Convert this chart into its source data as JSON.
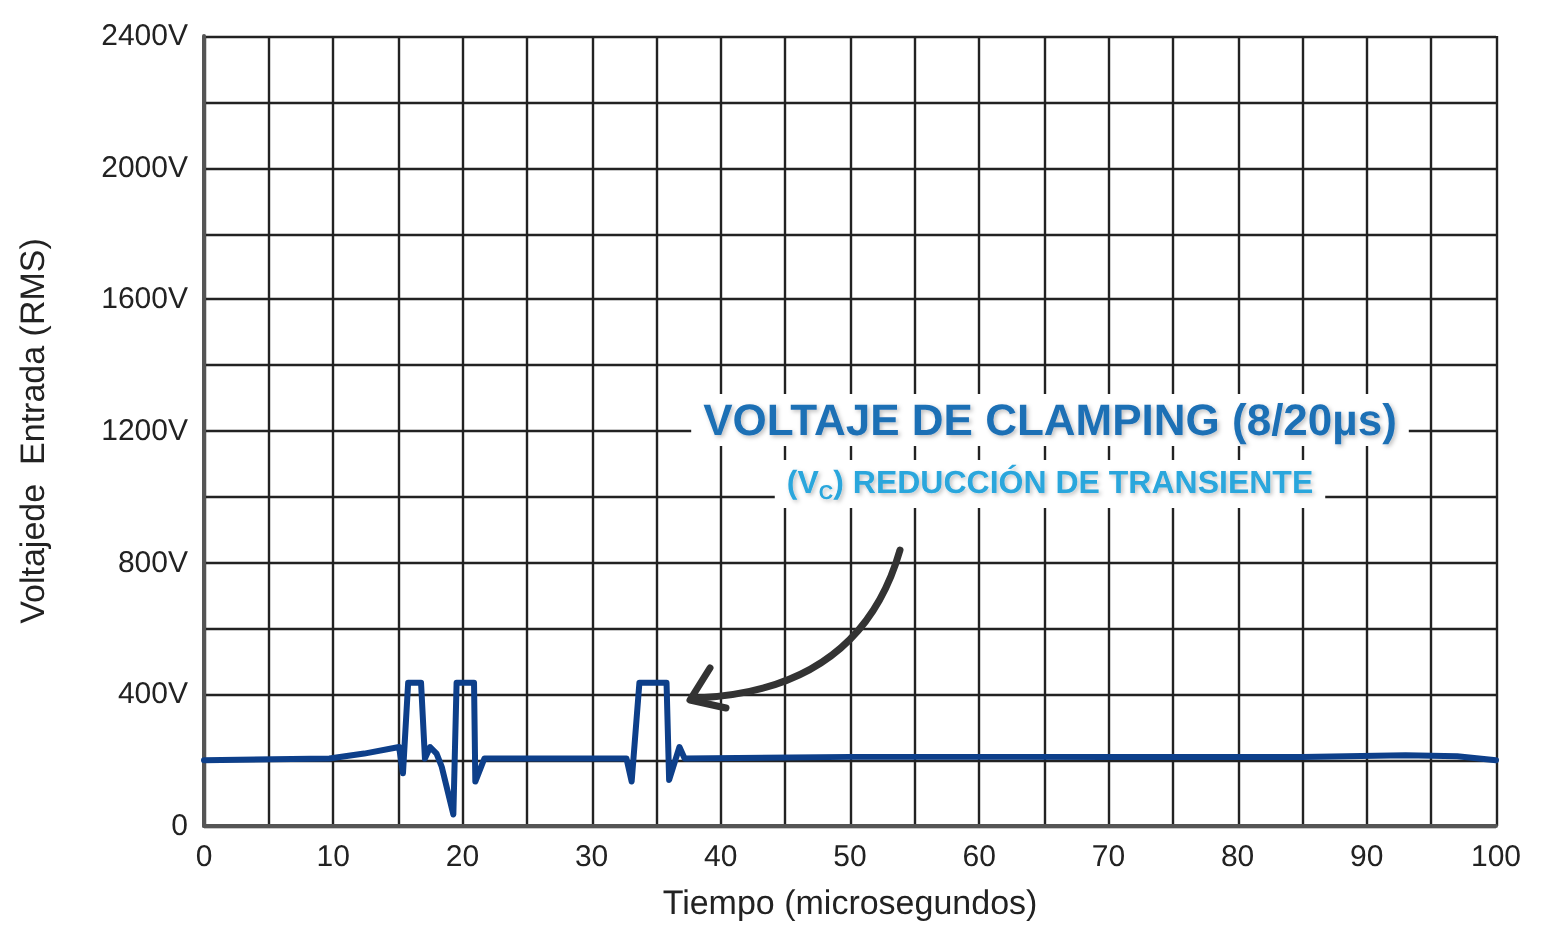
{
  "chart_data": {
    "type": "line",
    "xlabel": "Tiempo (microsegundos)",
    "ylabel": "Voltajede  Entrada (RMS)",
    "x": [
      0,
      9.7,
      12.4,
      15.1,
      15.4,
      15.8,
      16.8,
      17.1,
      17.5,
      18.0,
      18.4,
      19.3,
      19.55,
      20.9,
      21.0,
      21.7,
      32.7,
      33.1,
      33.7,
      35.8,
      36.0,
      36.8,
      37.2,
      50,
      70,
      85,
      93,
      97,
      100
    ],
    "series": [
      {
        "color": "#0d3f8a",
        "values": [
          200,
          205,
          220,
          240,
          160,
          435,
          435,
          205,
          240,
          220,
          180,
          35,
          435,
          435,
          135,
          205,
          205,
          135,
          435,
          435,
          140,
          240,
          205,
          210,
          210,
          210,
          215,
          212,
          200
        ]
      }
    ],
    "xlim": [
      0,
      100
    ],
    "xticks": [
      0,
      {
        "value": 5,
        "label": null
      },
      10,
      {
        "value": 15,
        "label": null
      },
      20,
      {
        "value": 25,
        "label": null
      },
      30,
      {
        "value": 35,
        "label": null
      },
      40,
      {
        "value": 45,
        "label": null
      },
      50,
      {
        "value": 55,
        "label": null
      },
      60,
      {
        "value": 65,
        "label": null
      },
      70,
      {
        "value": 75,
        "label": null
      },
      80,
      {
        "value": 85,
        "label": null
      },
      90,
      {
        "value": 95,
        "label": null
      },
      100
    ],
    "ylim": [
      0,
      2400
    ],
    "yticks": [
      0,
      {
        "value": 200,
        "label": null
      },
      {
        "value": 400,
        "label": "400V"
      },
      {
        "value": 600,
        "label": null
      },
      {
        "value": 800,
        "label": "800V"
      },
      {
        "value": 1000,
        "label": null
      },
      {
        "value": 1200,
        "label": "1200V"
      },
      {
        "value": 1400,
        "label": null
      },
      {
        "value": 1600,
        "label": "1600V"
      },
      {
        "value": 1800,
        "label": null
      },
      {
        "value": 2000,
        "label": "2000V"
      },
      {
        "value": 2200,
        "label": null
      },
      {
        "value": 2400,
        "label": "2400V"
      }
    ],
    "grid": true,
    "marker": "none",
    "line_style": "solid",
    "annotations": [
      "VOLTAJE DE CLAMPING (8/20µs)",
      "(V$_{C}$) REDUCCIÓN DE TRANSIENTE"
    ]
  }
}
